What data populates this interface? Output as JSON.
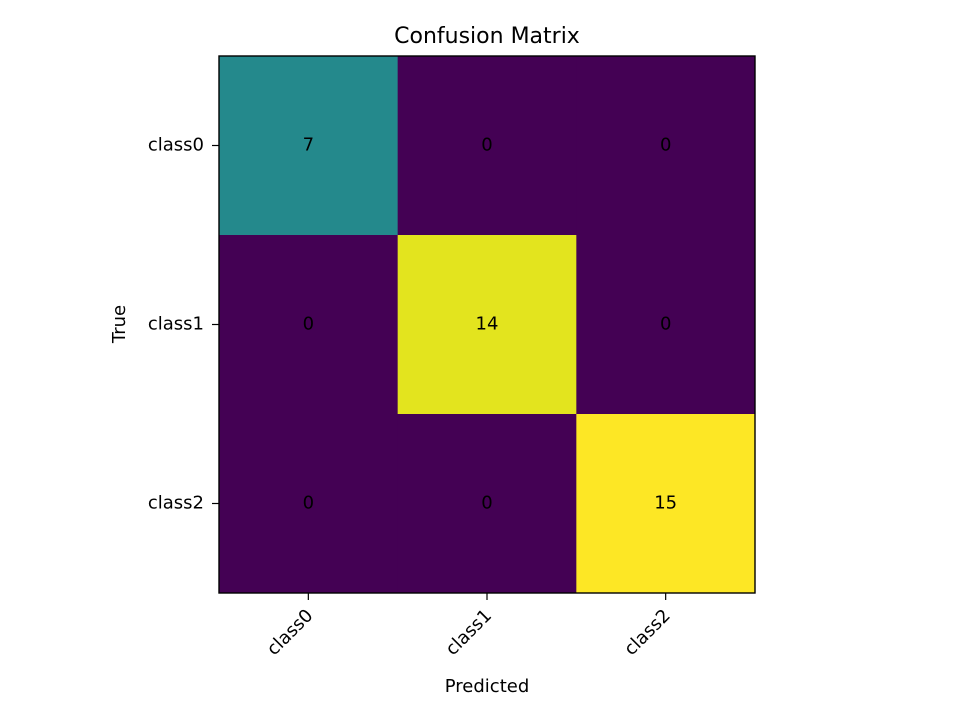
{
  "chart_data": {
    "type": "heatmap",
    "title": "Confusion Matrix",
    "xlabel": "Predicted",
    "ylabel": "True",
    "x_categories": [
      "class0",
      "class1",
      "class2"
    ],
    "y_categories": [
      "class0",
      "class1",
      "class2"
    ],
    "values": [
      [
        7,
        0,
        0
      ],
      [
        0,
        14,
        0
      ],
      [
        0,
        0,
        15
      ]
    ],
    "colormap": "viridis",
    "vmin": 0,
    "vmax": 15,
    "legend": "none",
    "grid": false,
    "colors": {
      "low": "#440154",
      "mid": "#21918c",
      "high": "#fde725"
    }
  }
}
